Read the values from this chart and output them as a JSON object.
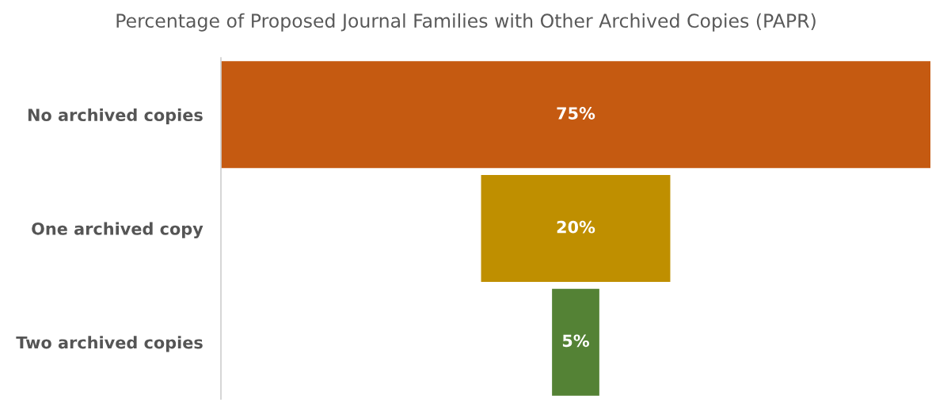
{
  "chart_data": {
    "type": "other",
    "title": "Percentage of Proposed Journal Families with Other Archived Copies (PAPR)",
    "categories": [
      "No archived copies",
      "One archived copy",
      "Two archived copies"
    ],
    "values": [
      75,
      20,
      5
    ],
    "colors": [
      "#c55a11",
      "#bf8f00",
      "#548235"
    ],
    "value_labels": [
      "75%",
      "20%",
      "5%"
    ]
  }
}
